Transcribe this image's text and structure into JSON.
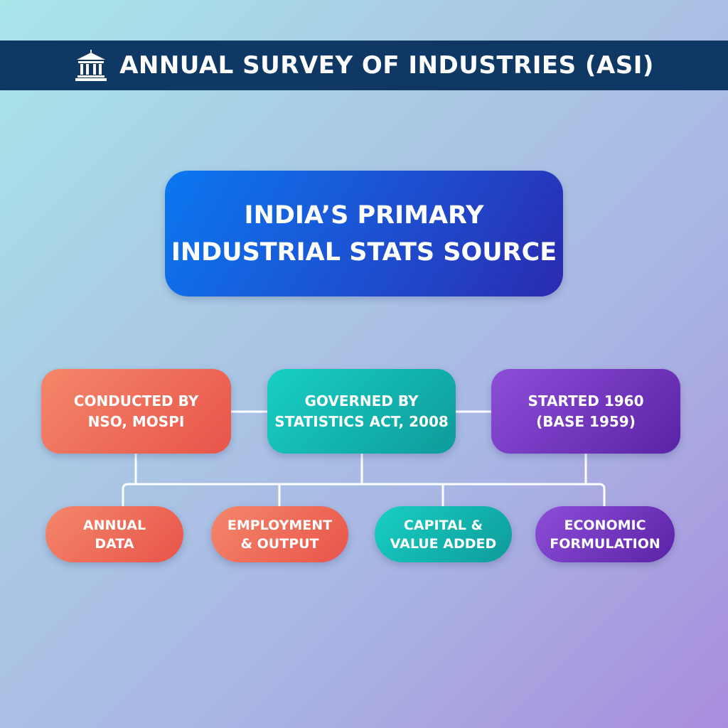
{
  "header": {
    "title": "ANNUAL SURVEY OF INDUSTRIES (ASI)",
    "icon": "institution-building-icon"
  },
  "main_node": {
    "line1": "INDIA’S PRIMARY",
    "line2": "INDUSTRIAL STATS SOURCE"
  },
  "facts": [
    {
      "line1": "CONDUCTED BY",
      "line2": "NSO, MOSPI"
    },
    {
      "line1": "GOVERNED BY",
      "line2": "STATISTICS ACT, 2008"
    },
    {
      "line1": "STARTED 1960",
      "line2": "(BASE 1959)"
    }
  ],
  "outputs": [
    {
      "line1": "ANNUAL",
      "line2": "DATA"
    },
    {
      "line1": "EMPLOYMENT",
      "line2": "& OUTPUT"
    },
    {
      "line1": "CAPITAL &",
      "line2": "VALUE ADDED"
    },
    {
      "line1": "ECONOMIC",
      "line2": "FORMULATION"
    }
  ],
  "colors": {
    "banner": "#0f3864",
    "main_node": "#1d4fd0",
    "red": "#ef6b58",
    "teal": "#14b5b0",
    "purple": "#7438c0",
    "connector": "#ffffff"
  }
}
